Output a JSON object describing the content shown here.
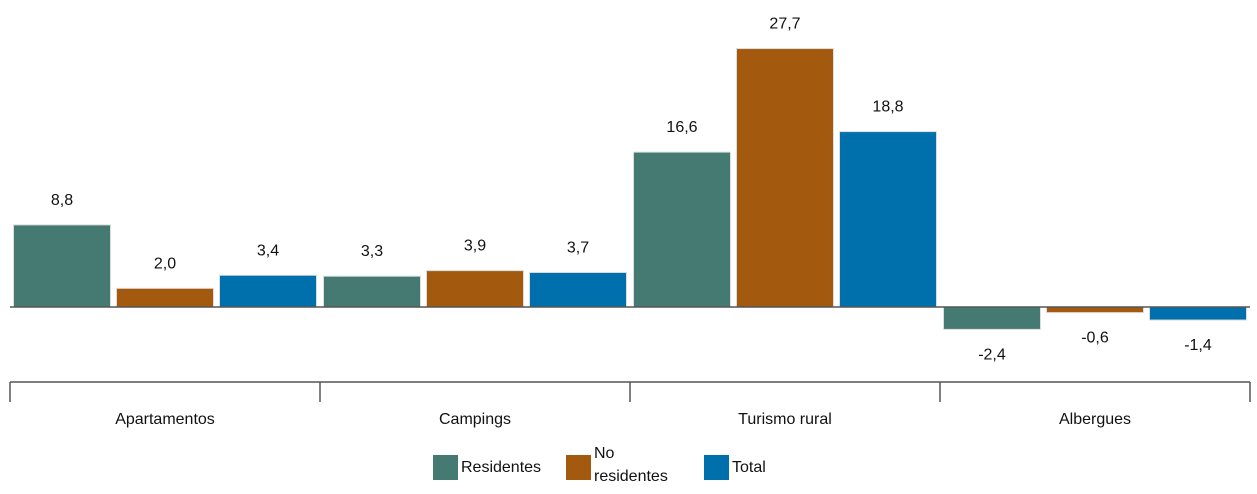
{
  "chart_data": {
    "type": "bar",
    "categories": [
      "Apartamentos",
      "Campings",
      "Turismo rural",
      "Albergues"
    ],
    "series": [
      {
        "name": "Residentes",
        "values": [
          8.8,
          3.3,
          16.6,
          -2.4
        ],
        "labels": [
          "8,8",
          "3,3",
          "16,6",
          "-2,4"
        ],
        "color": "#447a72"
      },
      {
        "name": "No residentes",
        "values": [
          2.0,
          3.9,
          27.7,
          -0.6
        ],
        "labels": [
          "2,0",
          "3,9",
          "27,7",
          "-0,6"
        ],
        "color": "#a45a0e"
      },
      {
        "name": "Total",
        "values": [
          3.4,
          3.7,
          18.8,
          -1.4
        ],
        "labels": [
          "3,4",
          "3,7",
          "18,8",
          "-1,4"
        ],
        "color": "#0070ad"
      }
    ],
    "legend": {
      "position": "bottom",
      "items": [
        {
          "lines": [
            "Residentes"
          ],
          "color": "#447a72"
        },
        {
          "lines": [
            "No",
            "residentes"
          ],
          "color": "#a45a0e"
        },
        {
          "lines": [
            "Total"
          ],
          "color": "#0070ad"
        }
      ]
    },
    "grid": false,
    "title": "",
    "xlabel": "",
    "ylabel": ""
  }
}
